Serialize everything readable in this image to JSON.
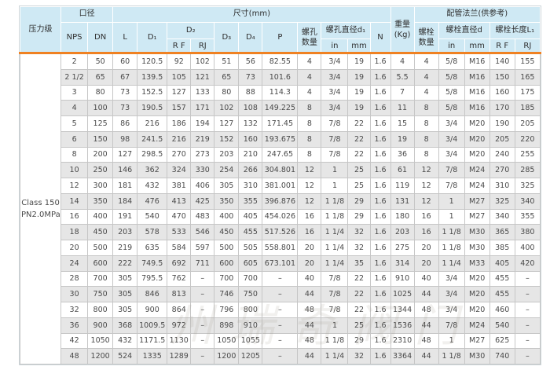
{
  "colors": {
    "header_bg": "#cfe9f4",
    "stripe": "#e6e6e6",
    "accent": "#ef8122",
    "border": "#c6c6c6",
    "text": "#4a4a4a"
  },
  "watermark": "州瑞奇阀门",
  "table": {
    "pressure_class": {
      "header": "压力级",
      "value": "Class 150\nPN2.0MPa"
    },
    "header": {
      "caliber": "口径",
      "dimensions": "尺寸(mm)",
      "pipe_flange": "配管法兰(供参考)",
      "nps": "NPS",
      "dn": "DN",
      "L": "L",
      "D1": "D₁",
      "D2": "D₂",
      "D3": "D₃",
      "D4": "D₄",
      "P": "P",
      "RF": "R F",
      "RJ": "RJ",
      "in": "in",
      "mm": "mm",
      "N": "N",
      "bolt_hole_qty": "螺孔\n数量",
      "bolt_hole_dia": "螺孔直径d₁",
      "weight": "重量\n(Kg)",
      "bolt_qty": "螺栓\n数量",
      "bolt_dia": "螺栓直径d",
      "bolt_len": "螺栓长度L₁"
    },
    "rows": [
      [
        "2",
        "50",
        "60",
        "120.5",
        "92",
        "102",
        "51",
        "56",
        "82.55",
        "4",
        "3/4",
        "19",
        "1.6",
        "4",
        "4",
        "5/8",
        "M16",
        "140",
        "155"
      ],
      [
        "2 1/2",
        "65",
        "67",
        "139.5",
        "105",
        "121",
        "65",
        "73",
        "101.6",
        "4",
        "3/4",
        "19",
        "1.6",
        "5.5",
        "4",
        "5/8",
        "M16",
        "150",
        "165"
      ],
      [
        "3",
        "80",
        "73",
        "152.5",
        "127",
        "133",
        "80",
        "88",
        "114.3",
        "4",
        "3/4",
        "19",
        "1.6",
        "7",
        "4",
        "5/8",
        "M16",
        "160",
        "175"
      ],
      [
        "4",
        "100",
        "73",
        "190.5",
        "157",
        "171",
        "102",
        "108",
        "149.225",
        "8",
        "3/4",
        "19",
        "1.6",
        "11",
        "8",
        "5/8",
        "M16",
        "170",
        "185"
      ],
      [
        "5",
        "125",
        "86",
        "216",
        "186",
        "194",
        "127",
        "132",
        "171.45",
        "8",
        "7/8",
        "22",
        "1.6",
        "15",
        "8",
        "3/4",
        "M20",
        "190",
        "205"
      ],
      [
        "6",
        "150",
        "98",
        "241.5",
        "216",
        "219",
        "152",
        "160",
        "193.675",
        "8",
        "7/8",
        "22",
        "1.6",
        "19",
        "8",
        "3/4",
        "M20",
        "205",
        "220"
      ],
      [
        "8",
        "200",
        "127",
        "298.5",
        "270",
        "273",
        "203",
        "210",
        "247.65",
        "8",
        "7/8",
        "22",
        "1.6",
        "36",
        "8",
        "3/4",
        "M20",
        "240",
        "255"
      ],
      [
        "10",
        "250",
        "146",
        "362",
        "324",
        "330",
        "254",
        "266",
        "304.801",
        "12",
        "1",
        "25",
        "1.6",
        "61",
        "12",
        "7/8",
        "M24",
        "270",
        "285"
      ],
      [
        "12",
        "300",
        "181",
        "432",
        "381",
        "406",
        "305",
        "310",
        "381.001",
        "12",
        "1",
        "25",
        "1.6",
        "119",
        "12",
        "7/8",
        "M24",
        "310",
        "325"
      ],
      [
        "14",
        "350",
        "184",
        "476",
        "413",
        "425",
        "350",
        "355",
        "396.876",
        "12",
        "1 1/8",
        "29",
        "1.6",
        "131",
        "12",
        "1",
        "M27",
        "325",
        "340"
      ],
      [
        "16",
        "400",
        "191",
        "540",
        "470",
        "483",
        "400",
        "405",
        "454.026",
        "16",
        "1 1/8",
        "29",
        "1.6",
        "180",
        "16",
        "1",
        "M27",
        "340",
        "355"
      ],
      [
        "18",
        "450",
        "203",
        "578",
        "533",
        "546",
        "450",
        "455",
        "517.526",
        "16",
        "1 1/4",
        "32",
        "1.6",
        "203",
        "16",
        "1 1/8",
        "M30",
        "365",
        "380"
      ],
      [
        "20",
        "500",
        "219",
        "635",
        "584",
        "597",
        "500",
        "505",
        "558.801",
        "20",
        "1 1/4",
        "32",
        "1.6",
        "275",
        "20",
        "1 1/8",
        "M30",
        "385",
        "400"
      ],
      [
        "24",
        "600",
        "222",
        "749.5",
        "692",
        "711",
        "600",
        "605",
        "673.101",
        "20",
        "1 1/4",
        "35",
        "1.6",
        "314",
        "20",
        "1 1/4",
        "M33",
        "405",
        "420"
      ],
      [
        "28",
        "700",
        "305",
        "795.5",
        "762",
        "–",
        "700",
        "700",
        "–",
        "40",
        "7/8",
        "22",
        "1.6",
        "910",
        "40",
        "3/4",
        "M20",
        "455",
        "–"
      ],
      [
        "30",
        "750",
        "305",
        "846",
        "813",
        "–",
        "746",
        "750",
        "–",
        "44",
        "7/8",
        "22",
        "1.6",
        "1025",
        "44",
        "3/4",
        "M20",
        "455",
        "–"
      ],
      [
        "32",
        "800",
        "305",
        "900",
        "864",
        "–",
        "796",
        "800",
        "–",
        "48",
        "7/8",
        "22",
        "1.6",
        "1344",
        "48",
        "3/4",
        "M20",
        "460",
        "–"
      ],
      [
        "36",
        "900",
        "368",
        "1009.5",
        "972",
        "–",
        "898",
        "910",
        "–",
        "44",
        "1",
        "25",
        "1.6",
        "1536",
        "44",
        "7/8",
        "M24",
        "540",
        "–"
      ],
      [
        "42",
        "1050",
        "432",
        "1171.5",
        "1130",
        "–",
        "1050",
        "1055",
        "–",
        "48",
        "1 1/8",
        "29",
        "1.6",
        "2310",
        "48",
        "1",
        "M27",
        "625",
        "–"
      ],
      [
        "48",
        "1200",
        "524",
        "1335",
        "1289",
        "–",
        "1200",
        "1205",
        "–",
        "44",
        "1 1/4",
        "32",
        "1.6",
        "3364",
        "44",
        "1 1/8",
        "M30",
        "740",
        "–"
      ]
    ]
  }
}
